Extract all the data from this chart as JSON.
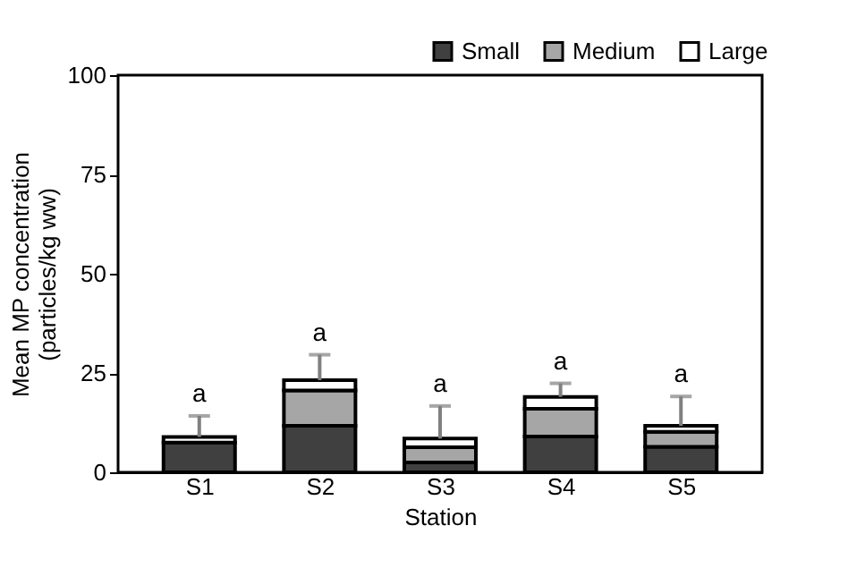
{
  "chart_data": {
    "type": "bar",
    "stacked": true,
    "categories": [
      "S1",
      "S2",
      "S3",
      "S4",
      "S5"
    ],
    "series": [
      {
        "name": "Small",
        "color": "#404040",
        "values": [
          7.5,
          11.7,
          2.5,
          9,
          6.4
        ]
      },
      {
        "name": "Medium",
        "color": "#a6a6a6",
        "values": [
          null,
          8.9,
          3.8,
          7,
          3.8
        ]
      },
      {
        "name": "Large",
        "color": "#ffffff",
        "values": [
          1.4,
          2.6,
          2.2,
          3,
          1.5
        ],
        "errors": [
          5.3,
          6.4,
          8.2,
          3.4,
          7.4
        ]
      }
    ],
    "xlabel": "Station",
    "ylabel": "Mean MP concentration\n(particles/kg ww)",
    "ylim": [
      0,
      100
    ],
    "yticks": [
      0,
      25,
      50,
      75,
      100
    ],
    "grid": false,
    "legend": "top right",
    "annotations": [
      "a",
      "a",
      "a",
      "a",
      "a"
    ]
  }
}
